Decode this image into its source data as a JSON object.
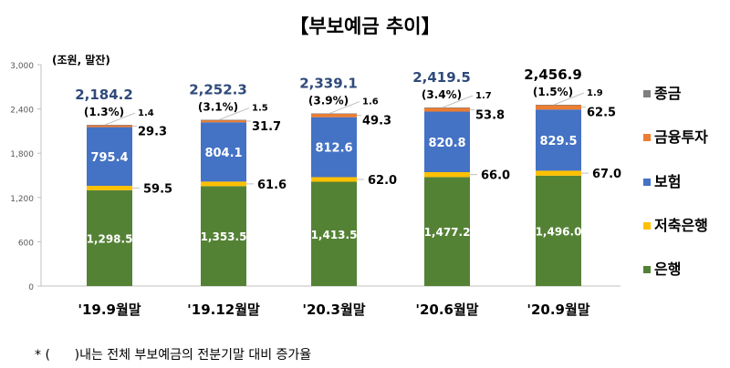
{
  "chart_data": {
    "type": "bar",
    "stacked": true,
    "title": "【부보예금 추이】",
    "unit_label": "(조원, 말잔)",
    "footnote": "* (      )내는 전체 부보예금의 전분기말 대비 증가율",
    "categories": [
      "'19.9월말",
      "'19.12월말",
      "'20.3월말",
      "'20.6월말",
      "'20.9월말"
    ],
    "ylim": [
      0,
      3000
    ],
    "yticks": [
      "0",
      "600",
      "1,200",
      "1,800",
      "2,400",
      "3,000"
    ],
    "ytick_values": [
      0,
      600,
      1200,
      1800,
      2400,
      3000
    ],
    "grid": false,
    "legend_position": "right",
    "series": [
      {
        "name": "은행",
        "color": "#548235",
        "values": [
          1298.5,
          1353.5,
          1413.5,
          1477.2,
          1496.0
        ],
        "labels": [
          "1,298.5",
          "1,353.5",
          "1,413.5",
          "1,477.2",
          "1,496.0"
        ]
      },
      {
        "name": "저축은행",
        "color": "#FFC000",
        "values": [
          59.5,
          61.6,
          62.0,
          66.0,
          67.0
        ],
        "labels": [
          "59.5",
          "61.6",
          "62.0",
          "66.0",
          "67.0"
        ]
      },
      {
        "name": "보험",
        "color": "#4472C4",
        "values": [
          795.4,
          804.1,
          812.6,
          820.8,
          829.5
        ],
        "labels": [
          "795.4",
          "804.1",
          "812.6",
          "820.8",
          "829.5"
        ]
      },
      {
        "name": "금융투자",
        "color": "#ED7D31",
        "values": [
          29.3,
          31.7,
          49.3,
          53.8,
          62.5
        ],
        "labels": [
          "29.3",
          "31.7",
          "49.3",
          "53.8",
          "62.5"
        ]
      },
      {
        "name": "종금",
        "color": "#7F7F7F",
        "values": [
          1.4,
          1.5,
          1.6,
          1.7,
          1.9
        ],
        "labels": [
          "1.4",
          "1.5",
          "1.6",
          "1.7",
          "1.9"
        ]
      }
    ],
    "totals": [
      "2,184.2",
      "2,252.3",
      "2,339.1",
      "2,419.5",
      "2,456.9"
    ],
    "total_values": [
      2184.2,
      2252.3,
      2339.1,
      2419.5,
      2456.9
    ],
    "growth": [
      "(1.3%)",
      "(3.1%)",
      "(3.9%)",
      "(3.4%)",
      "(1.5%)"
    ],
    "total_colors": [
      "#2F4A7A",
      "#2F4A7A",
      "#2F4A7A",
      "#2F4A7A",
      "#000000"
    ]
  }
}
